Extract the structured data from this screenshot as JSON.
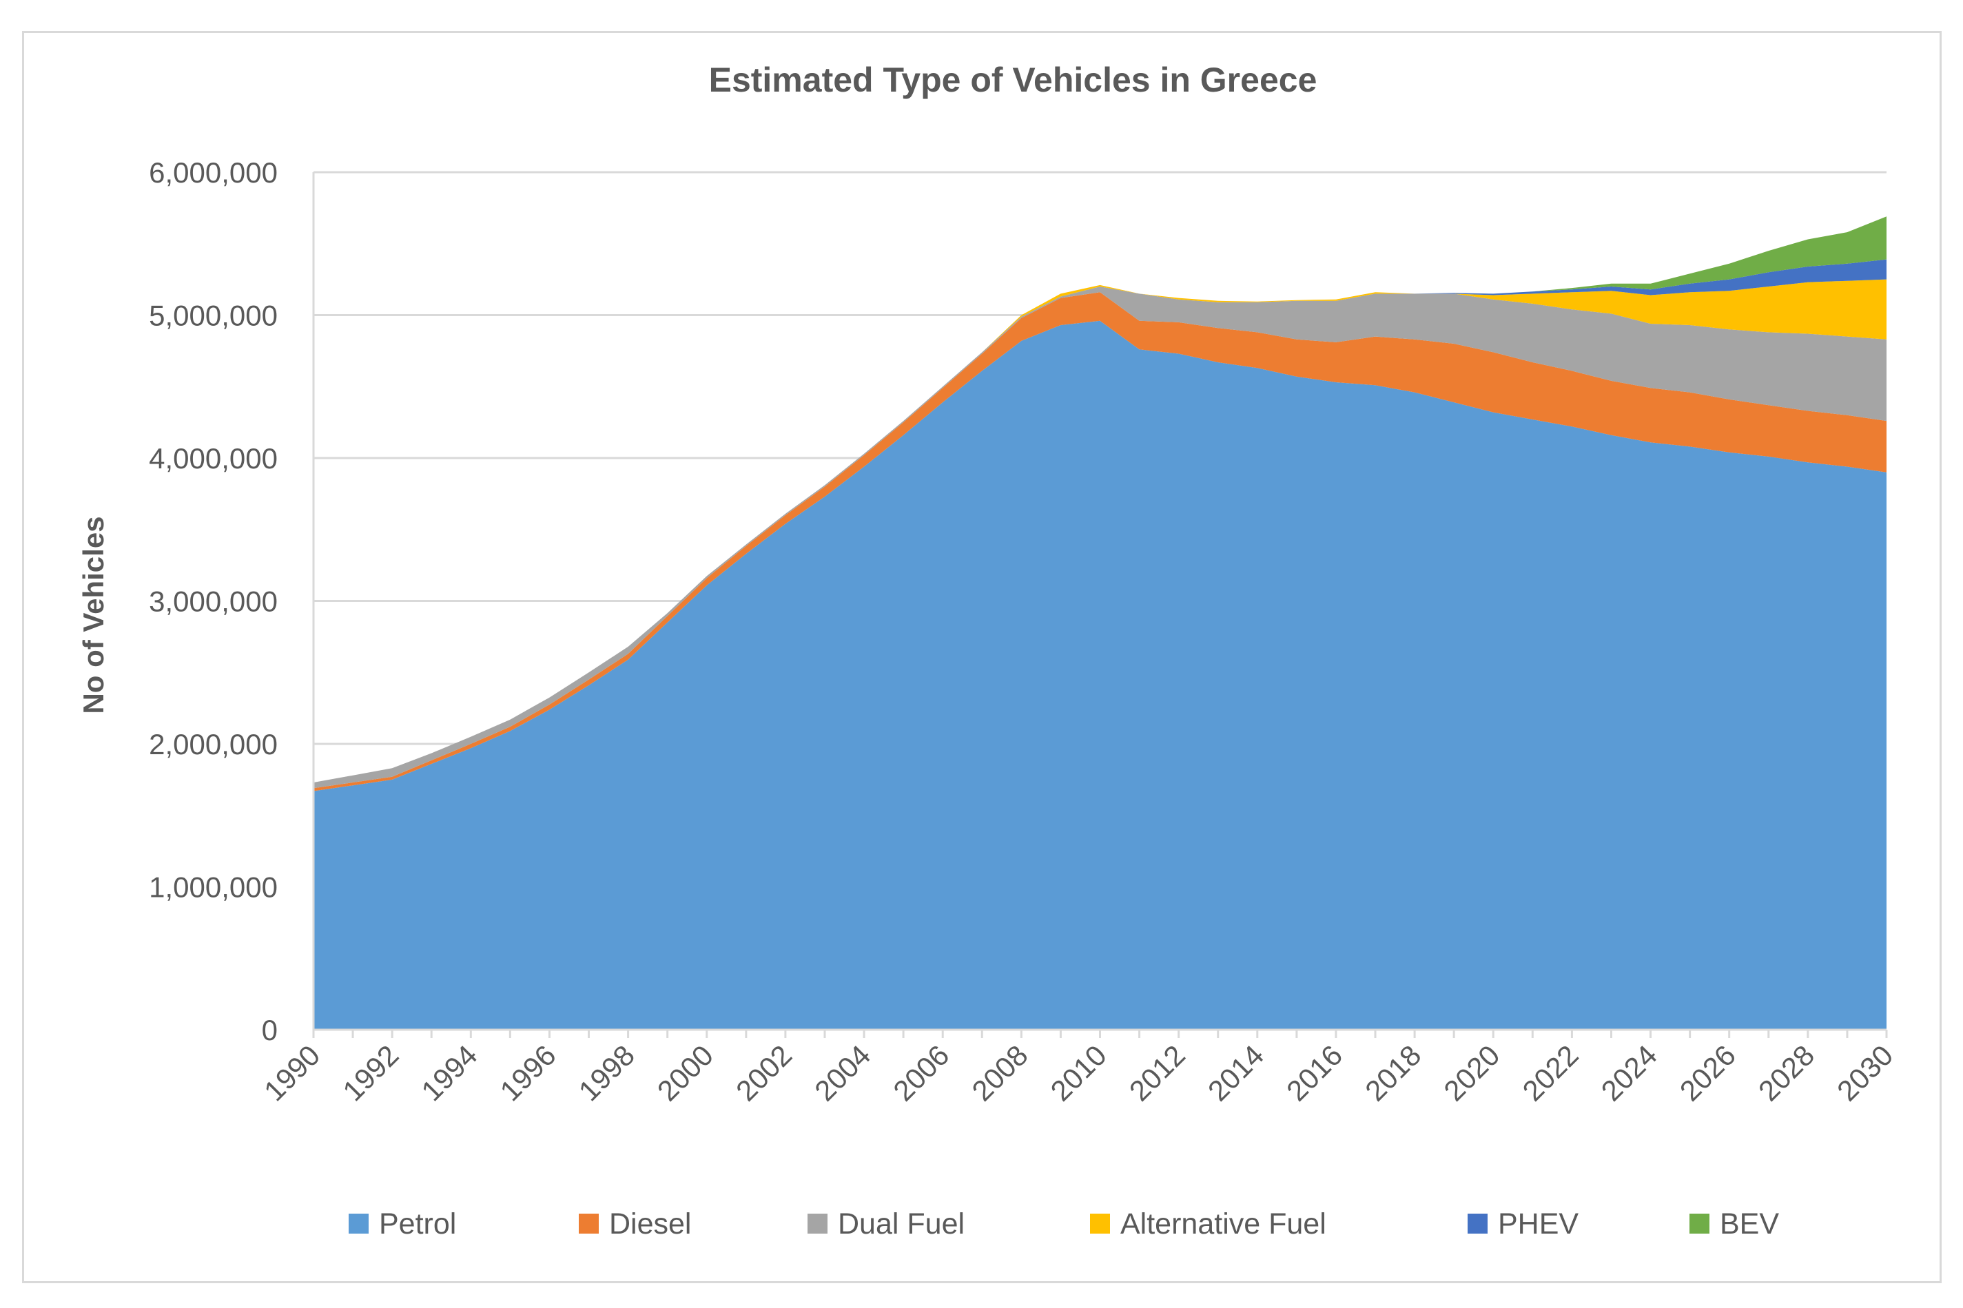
{
  "chart_data": {
    "type": "area",
    "stacked": true,
    "title": "Estimated Type of Vehicles in Greece",
    "xlabel": "",
    "ylabel": "No of Vehicles",
    "ylim": [
      0,
      6000000
    ],
    "yticks": [
      0,
      1000000,
      2000000,
      3000000,
      4000000,
      5000000,
      6000000
    ],
    "ytick_labels": [
      "0",
      "1,000,000",
      "2,000,000",
      "3,000,000",
      "4,000,000",
      "5,000,000",
      "6,000,000"
    ],
    "xticks": [
      "1990",
      "1992",
      "1994",
      "1996",
      "1998",
      "2000",
      "2002",
      "2004",
      "2006",
      "2008",
      "2010",
      "2012",
      "2014",
      "2016",
      "2018",
      "2020",
      "2022",
      "2024",
      "2026",
      "2028",
      "2030"
    ],
    "grid": true,
    "legend_position": "bottom",
    "x": [
      1990,
      1991,
      1992,
      1993,
      1994,
      1995,
      1996,
      1997,
      1998,
      1999,
      2000,
      2001,
      2002,
      2003,
      2004,
      2005,
      2006,
      2007,
      2008,
      2009,
      2010,
      2011,
      2012,
      2013,
      2014,
      2015,
      2016,
      2017,
      2018,
      2019,
      2020,
      2021,
      2022,
      2023,
      2024,
      2025,
      2026,
      2027,
      2028,
      2029,
      2030
    ],
    "series": [
      {
        "name": "Petrol",
        "color": "#5B9BD5",
        "values": [
          1670000,
          1710000,
          1750000,
          1860000,
          1970000,
          2090000,
          2240000,
          2410000,
          2590000,
          2850000,
          3110000,
          3330000,
          3540000,
          3730000,
          3940000,
          4160000,
          4390000,
          4610000,
          4820000,
          4930000,
          4960000,
          4760000,
          4730000,
          4670000,
          4630000,
          4570000,
          4530000,
          4510000,
          4460000,
          4390000,
          4320000,
          4270000,
          4220000,
          4160000,
          4110000,
          4080000,
          4040000,
          4010000,
          3970000,
          3940000,
          3900000
        ]
      },
      {
        "name": "Diesel",
        "color": "#ED7D31",
        "values": [
          20000,
          20000,
          20000,
          25000,
          30000,
          30000,
          35000,
          40000,
          40000,
          45000,
          50000,
          55000,
          60000,
          70000,
          80000,
          90000,
          100000,
          120000,
          160000,
          190000,
          200000,
          200000,
          220000,
          240000,
          250000,
          260000,
          280000,
          340000,
          370000,
          410000,
          420000,
          400000,
          390000,
          380000,
          380000,
          380000,
          370000,
          360000,
          360000,
          360000,
          360000
        ]
      },
      {
        "name": "Dual Fuel",
        "color": "#A5A5A5",
        "values": [
          40000,
          50000,
          60000,
          50000,
          50000,
          50000,
          50000,
          50000,
          50000,
          20000,
          15000,
          10000,
          10000,
          10000,
          10000,
          10000,
          10000,
          10000,
          10000,
          10000,
          40000,
          190000,
          160000,
          180000,
          210000,
          270000,
          290000,
          300000,
          320000,
          350000,
          370000,
          410000,
          430000,
          470000,
          450000,
          470000,
          490000,
          510000,
          540000,
          550000,
          570000
        ]
      },
      {
        "name": "Alternative Fuel",
        "color": "#FFC000",
        "values": [
          0,
          0,
          0,
          0,
          0,
          0,
          0,
          0,
          0,
          0,
          0,
          0,
          0,
          0,
          0,
          0,
          0,
          0,
          10000,
          20000,
          10000,
          0,
          10000,
          10000,
          5000,
          5000,
          10000,
          10000,
          0,
          0,
          30000,
          70000,
          120000,
          160000,
          200000,
          230000,
          270000,
          320000,
          360000,
          390000,
          420000
        ]
      },
      {
        "name": "PHEV",
        "color": "#4472C4",
        "values": [
          0,
          0,
          0,
          0,
          0,
          0,
          0,
          0,
          0,
          0,
          0,
          0,
          0,
          0,
          0,
          0,
          0,
          0,
          0,
          0,
          0,
          0,
          0,
          0,
          0,
          0,
          0,
          0,
          0,
          5000,
          10000,
          15000,
          20000,
          30000,
          40000,
          60000,
          80000,
          100000,
          110000,
          120000,
          140000
        ]
      },
      {
        "name": "BEV",
        "color": "#70AD47",
        "values": [
          0,
          0,
          0,
          0,
          0,
          0,
          0,
          0,
          0,
          0,
          0,
          0,
          0,
          0,
          0,
          0,
          0,
          0,
          0,
          0,
          0,
          0,
          0,
          0,
          0,
          0,
          0,
          0,
          0,
          0,
          0,
          0,
          10000,
          20000,
          40000,
          70000,
          110000,
          150000,
          190000,
          220000,
          300000
        ]
      }
    ]
  }
}
